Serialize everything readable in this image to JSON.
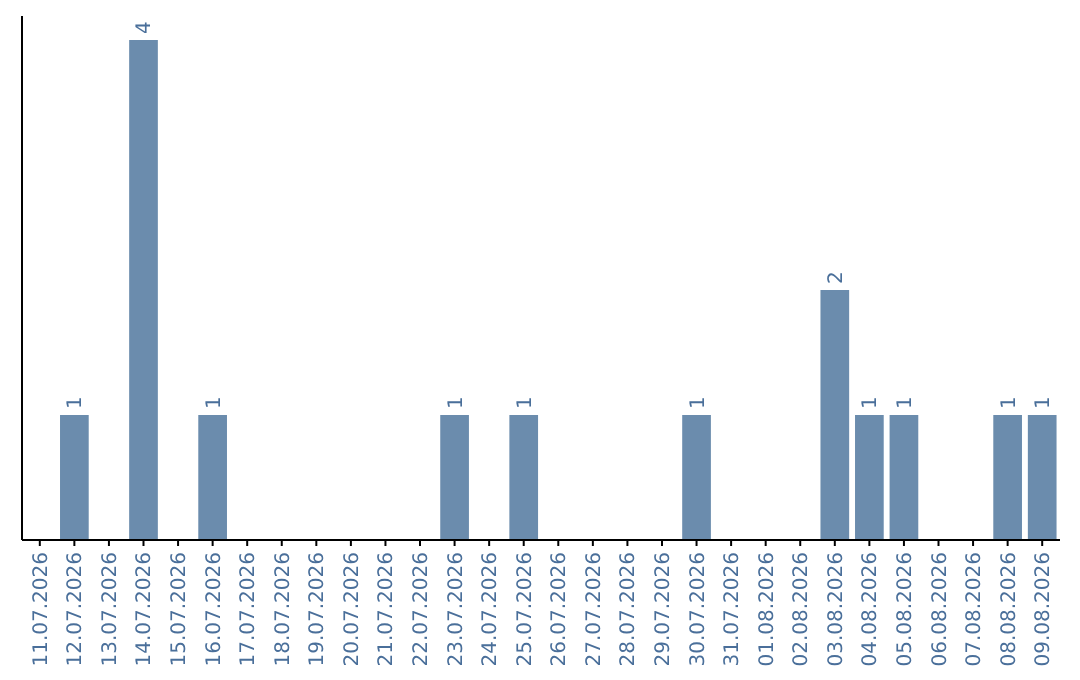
{
  "chart_data": {
    "type": "bar",
    "categories": [
      "11.07.2026",
      "12.07.2026",
      "13.07.2026",
      "14.07.2026",
      "15.07.2026",
      "16.07.2026",
      "17.07.2026",
      "18.07.2026",
      "19.07.2026",
      "20.07.2026",
      "21.07.2026",
      "22.07.2026",
      "23.07.2026",
      "24.07.2026",
      "25.07.2026",
      "26.07.2026",
      "27.07.2026",
      "28.07.2026",
      "29.07.2026",
      "30.07.2026",
      "31.07.2026",
      "01.08.2026",
      "02.08.2026",
      "03.08.2026",
      "04.08.2026",
      "05.08.2026",
      "06.08.2026",
      "07.08.2026",
      "08.08.2026",
      "09.08.2026"
    ],
    "values": [
      0,
      1,
      0,
      4,
      0,
      1,
      0,
      0,
      0,
      0,
      0,
      0,
      1,
      0,
      1,
      0,
      0,
      0,
      0,
      1,
      0,
      0,
      0,
      2,
      1,
      1,
      0,
      0,
      1,
      1
    ],
    "value_labels": [
      null,
      "1",
      null,
      "4",
      null,
      "1",
      null,
      null,
      null,
      null,
      null,
      null,
      "1",
      null,
      "1",
      null,
      null,
      null,
      null,
      "1",
      null,
      null,
      null,
      "2",
      "1",
      "1",
      null,
      null,
      "1",
      "1"
    ],
    "color": "#6b8cad"
  }
}
